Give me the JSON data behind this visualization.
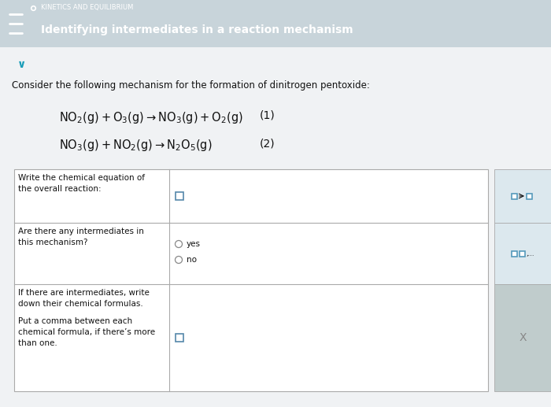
{
  "header_bg": "#1a9db8",
  "header_text1": "KINETICS AND EQUILIBRIUM",
  "header_text2": "Identifying intermediates in a reaction mechanism",
  "body_bg": "#c8d4da",
  "card_bg": "#f0f2f4",
  "white": "#ffffff",
  "intro_text": "Consider the following mechanism for the formation of dinitrogen pentoxide:",
  "eq1_label": "(1)",
  "eq2_label": "(2)",
  "row1_left": "Write the chemical equation of\nthe overall reaction:",
  "row2_left": "Are there any intermediates in\nthis mechanism?",
  "row2_opt1": "yes",
  "row2_opt2": "no",
  "row3_left1": "If there are intermediates, write\ndown their chemical formulas.",
  "row3_left2": "Put a comma between each\nchemical formula, if there’s more\nthan one.",
  "sidebar_bg1": "#dce8ee",
  "sidebar_bg2": "#dce8ee",
  "sidebar_bg3": "#c0cccc",
  "sidebar_icon1_color": "#5599bb",
  "sidebar_x_color": "#888888",
  "chevron_color": "#1a9db8",
  "text_dark": "#111111",
  "text_gray": "#444444",
  "table_border": "#aaaaaa"
}
